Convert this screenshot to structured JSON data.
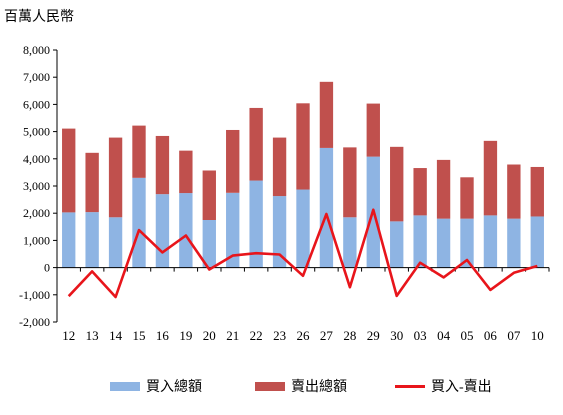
{
  "chart_data": {
    "type": "bar",
    "unit_label": "百萬人民幣",
    "categories": [
      "12",
      "13",
      "14",
      "15",
      "16",
      "19",
      "20",
      "21",
      "22",
      "23",
      "26",
      "27",
      "28",
      "29",
      "30",
      "03",
      "04",
      "05",
      "06",
      "07",
      "10"
    ],
    "series": [
      {
        "name": "買入總額",
        "kind": "stacked-bar",
        "color": "#8eb4e3",
        "values": [
          2030,
          2040,
          1850,
          3300,
          2700,
          2740,
          1750,
          2750,
          3200,
          2630,
          2870,
          4400,
          1850,
          4080,
          1700,
          1920,
          1800,
          1800,
          1920,
          1800,
          1880
        ]
      },
      {
        "name": "賣出總額",
        "kind": "stacked-bar",
        "color": "#c0504d",
        "values": [
          3080,
          2180,
          2930,
          1920,
          2140,
          1560,
          1820,
          2310,
          2670,
          2150,
          3170,
          2430,
          2570,
          1950,
          2740,
          1740,
          2160,
          1520,
          2740,
          1990,
          1820
        ]
      },
      {
        "name": "買入-賣出",
        "kind": "line",
        "color": "#e8151b",
        "values": [
          -1050,
          -140,
          -1080,
          1380,
          560,
          1180,
          -70,
          440,
          530,
          480,
          -300,
          1970,
          -720,
          2130,
          -1040,
          180,
          -360,
          280,
          -820,
          -190,
          60
        ]
      }
    ],
    "ylim": [
      -2000,
      8000
    ],
    "yticks": [
      "-2,000",
      "-1,000",
      "0",
      "1,000",
      "2,000",
      "3,000",
      "4,000",
      "5,000",
      "6,000",
      "7,000",
      "8,000"
    ],
    "grid": false,
    "legend_position": "bottom"
  }
}
